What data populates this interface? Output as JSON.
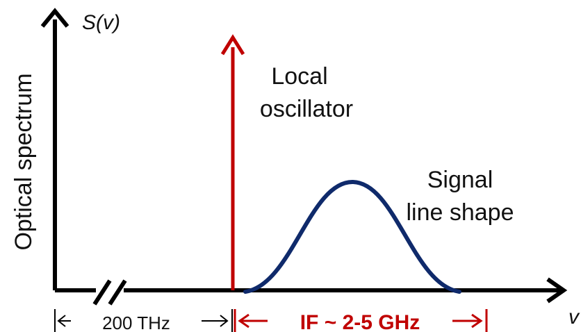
{
  "y_axis_symbol": "S(v)",
  "y_axis_label": "Optical spectrum",
  "x_axis_symbol": "v",
  "local_oscillator": {
    "line1": "Local",
    "line2": "oscillator"
  },
  "signal": {
    "line1": "Signal",
    "line2": "line shape"
  },
  "span_offset_label": "200 THz",
  "span_if_label": "IF ~ 2-5 GHz",
  "colors": {
    "axis": "#000000",
    "local_oscillator": "#c00000",
    "signal_curve": "#0f2a6b",
    "if_span": "#c00000"
  }
}
